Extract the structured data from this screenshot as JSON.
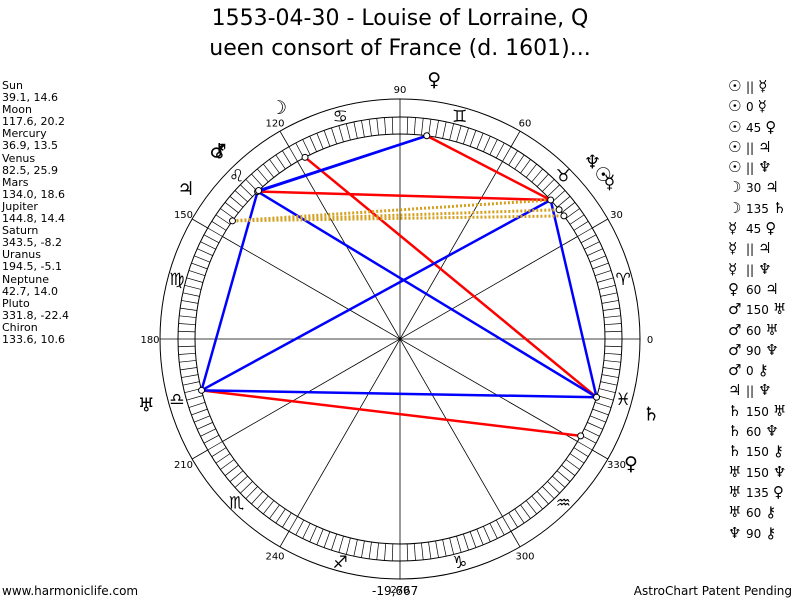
{
  "title_lines": [
    "1553-04-30 - Louise of Lorraine, Q",
    "ueen consort of France (d. 1601)..."
  ],
  "planets": [
    {
      "name": "Sun",
      "values": "39.1, 14.6"
    },
    {
      "name": "Moon",
      "values": "117.6, 20.2"
    },
    {
      "name": "Mercury",
      "values": "36.9, 13.5"
    },
    {
      "name": "Venus",
      "values": "82.5, 25.9"
    },
    {
      "name": "Mars",
      "values": "134.0, 18.6"
    },
    {
      "name": "Jupiter",
      "values": "144.8, 14.4"
    },
    {
      "name": "Saturn",
      "values": "343.5, -8.2"
    },
    {
      "name": "Uranus",
      "values": "194.5, -5.1"
    },
    {
      "name": "Neptune",
      "values": "42.7, 14.0"
    },
    {
      "name": "Pluto",
      "values": "331.8, -22.4"
    },
    {
      "name": "Chiron",
      "values": "133.6, 10.6"
    }
  ],
  "wheel_degree_labels": [
    "0",
    "30",
    "60",
    "90",
    "120",
    "150",
    "180",
    "210",
    "240",
    "270",
    "300",
    "330"
  ],
  "zodiac": [
    {
      "glyph": "♈",
      "lon": 15
    },
    {
      "glyph": "♉",
      "lon": 45
    },
    {
      "glyph": "♊",
      "lon": 75
    },
    {
      "glyph": "♋",
      "lon": 105
    },
    {
      "glyph": "♌",
      "lon": 135
    },
    {
      "glyph": "♍",
      "lon": 165
    },
    {
      "glyph": "♎",
      "lon": 195
    },
    {
      "glyph": "♏",
      "lon": 225
    },
    {
      "glyph": "♐",
      "lon": 255
    },
    {
      "glyph": "♑",
      "lon": 285
    },
    {
      "glyph": "♒",
      "lon": 315
    },
    {
      "glyph": "♓",
      "lon": 345
    }
  ],
  "planet_glyphs": [
    {
      "name": "Sun",
      "glyph": "☉",
      "lon": 39.1
    },
    {
      "name": "Moon",
      "glyph": "☽",
      "lon": 117.6
    },
    {
      "name": "Mercury",
      "glyph": "☿",
      "lon": 36.9
    },
    {
      "name": "Venus",
      "glyph": "♀",
      "lon": 82.5
    },
    {
      "name": "Mars",
      "glyph": "♂",
      "lon": 134.0
    },
    {
      "name": "Jupiter",
      "glyph": "♃",
      "lon": 144.8
    },
    {
      "name": "Saturn",
      "glyph": "♄",
      "lon": 343.5
    },
    {
      "name": "Uranus",
      "glyph": "♅",
      "lon": 194.5
    },
    {
      "name": "Neptune",
      "glyph": "♆",
      "lon": 42.7
    },
    {
      "name": "Pluto",
      "glyph": "♀",
      "lon": 331.8
    },
    {
      "name": "Chiron",
      "glyph": "⚷",
      "lon": 133.6
    }
  ],
  "aspect_lines": [
    {
      "a": "Venus",
      "b": "Neptune",
      "color": "#ff0000"
    },
    {
      "a": "Moon",
      "b": "Saturn",
      "color": "#ff0000"
    },
    {
      "a": "Mars",
      "b": "Neptune",
      "color": "#ff0000"
    },
    {
      "a": "Uranus",
      "b": "Pluto",
      "color": "#ff0000"
    },
    {
      "a": "Saturn",
      "b": "Uranus",
      "color": "#0000ff"
    },
    {
      "a": "Saturn",
      "b": "Mars",
      "color": "#0000ff"
    },
    {
      "a": "Venus",
      "b": "Mars",
      "color": "#0000ff"
    },
    {
      "a": "Venus",
      "b": "Chiron",
      "color": "#0000ff"
    },
    {
      "a": "Uranus",
      "b": "Mars",
      "color": "#0000ff"
    },
    {
      "a": "Uranus",
      "b": "Neptune",
      "color": "#0000ff"
    },
    {
      "a": "Neptune",
      "b": "Saturn",
      "color": "#0000ff"
    },
    {
      "a": "Jupiter",
      "b": "Neptune",
      "color": "#d4a020",
      "dotted": true
    },
    {
      "a": "Jupiter",
      "b": "Sun",
      "color": "#d4a020",
      "dotted": true
    },
    {
      "a": "Jupiter",
      "b": "Mercury",
      "color": "#d4a020",
      "dotted": true
    }
  ],
  "aspects": [
    {
      "p1": "☉",
      "asp": "||",
      "p2": "☿"
    },
    {
      "p1": "☉",
      "asp": "0",
      "p2": "☿"
    },
    {
      "p1": "☉",
      "asp": "45",
      "p2": "♀"
    },
    {
      "p1": "☉",
      "asp": "||",
      "p2": "♃"
    },
    {
      "p1": "☉",
      "asp": "||",
      "p2": "♆"
    },
    {
      "p1": "☽",
      "asp": "30",
      "p2": "♃"
    },
    {
      "p1": "☽",
      "asp": "135",
      "p2": "♄"
    },
    {
      "p1": "☿",
      "asp": "45",
      "p2": "♀"
    },
    {
      "p1": "☿",
      "asp": "||",
      "p2": "♃"
    },
    {
      "p1": "☿",
      "asp": "||",
      "p2": "♆"
    },
    {
      "p1": "♀",
      "asp": "60",
      "p2": "♃"
    },
    {
      "p1": "♂",
      "asp": "150",
      "p2": "♅"
    },
    {
      "p1": "♂",
      "asp": "60",
      "p2": "♅"
    },
    {
      "p1": "♂",
      "asp": "90",
      "p2": "♆"
    },
    {
      "p1": "♂",
      "asp": "0",
      "p2": "⚷"
    },
    {
      "p1": "♃",
      "asp": "||",
      "p2": "♆"
    },
    {
      "p1": "♄",
      "asp": "150",
      "p2": "♅"
    },
    {
      "p1": "♄",
      "asp": "60",
      "p2": "♆"
    },
    {
      "p1": "♄",
      "asp": "150",
      "p2": "⚷"
    },
    {
      "p1": "♅",
      "asp": "150",
      "p2": "♆"
    },
    {
      "p1": "♅",
      "asp": "135",
      "p2": "♀"
    },
    {
      "p1": "♅",
      "asp": "60",
      "p2": "⚷"
    },
    {
      "p1": "♆",
      "asp": "90",
      "p2": "⚷"
    }
  ],
  "footer": {
    "left": "www.harmoniclife.com",
    "center": "-19,667",
    "right": "AstroChart Patent Pending"
  }
}
